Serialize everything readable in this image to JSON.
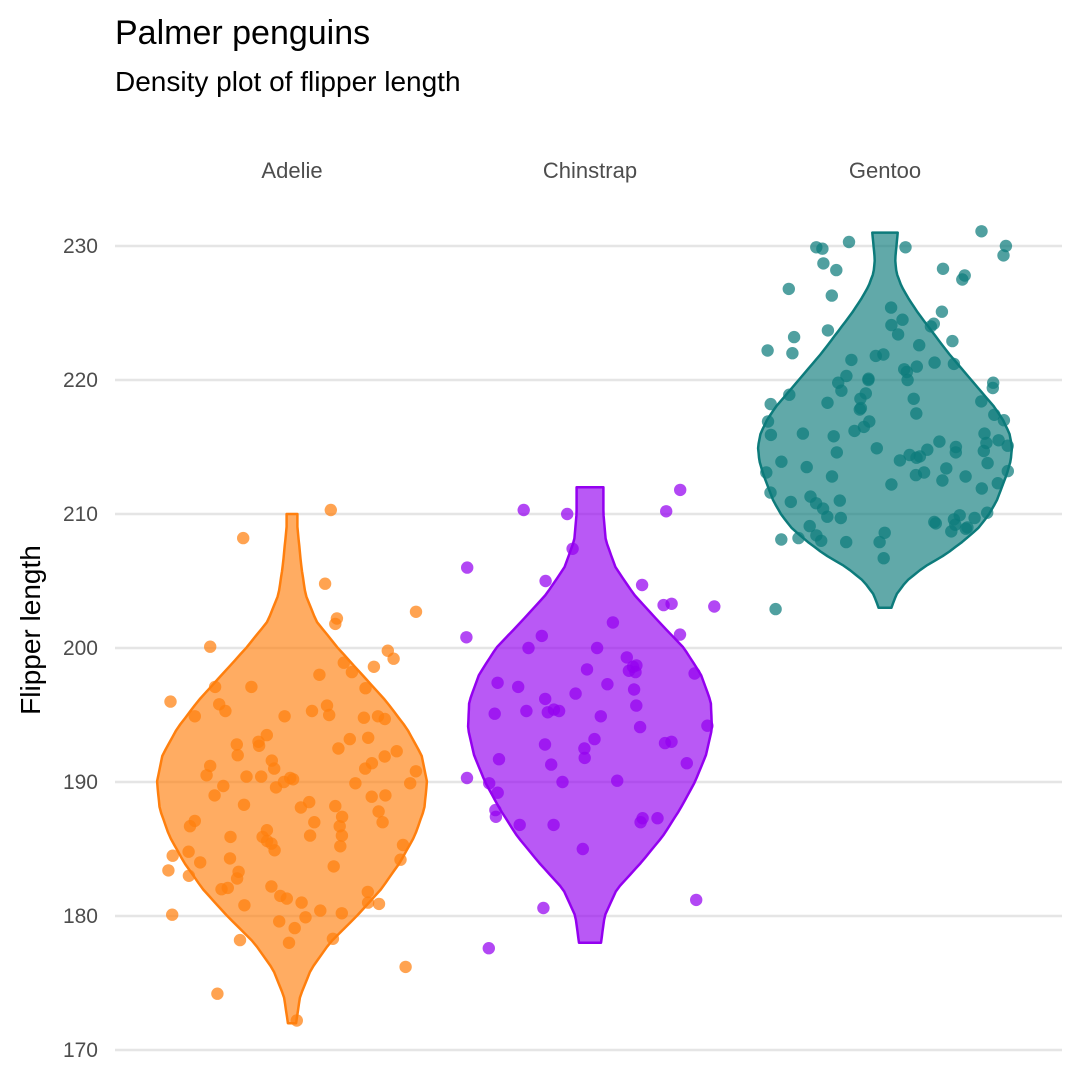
{
  "title": "Palmer penguins",
  "subtitle": "Density plot of flipper length",
  "chart_data": {
    "type": "violin",
    "title": "Palmer penguins",
    "subtitle": "Density plot of flipper length",
    "xlabel": "",
    "ylabel": "Flipper length",
    "ylim": [
      170,
      231
    ],
    "yticks": [
      170,
      180,
      190,
      200,
      210,
      220,
      230
    ],
    "grid": "horizontal major",
    "legend": "none",
    "categories": [
      "Adelie",
      "Chinstrap",
      "Gentoo"
    ],
    "series": [
      {
        "category": "Adelie",
        "color": "#ff7f0e",
        "range": [
          172,
          210
        ],
        "density_profile": [
          [
            172,
            0.03
          ],
          [
            174,
            0.06
          ],
          [
            176,
            0.14
          ],
          [
            178,
            0.28
          ],
          [
            180,
            0.48
          ],
          [
            182,
            0.66
          ],
          [
            184,
            0.8
          ],
          [
            186,
            0.91
          ],
          [
            188,
            0.98
          ],
          [
            190,
            1.0
          ],
          [
            192,
            0.96
          ],
          [
            194,
            0.85
          ],
          [
            196,
            0.7
          ],
          [
            198,
            0.52
          ],
          [
            200,
            0.34
          ],
          [
            202,
            0.18
          ],
          [
            204,
            0.1
          ],
          [
            206,
            0.07
          ],
          [
            208,
            0.05
          ],
          [
            209,
            0.04
          ],
          [
            210,
            0.04
          ]
        ],
        "values": [
          210.3,
          208.2,
          204.8,
          202.7,
          202.2,
          201.8,
          200.1,
          199.8,
          198.9,
          198.6,
          198.2,
          197.1,
          197.0,
          197.1,
          195.3,
          195.3,
          195.8,
          194.8,
          194.7,
          194.9,
          194.9,
          194.9,
          193.2,
          193.0,
          192.8,
          192.7,
          192.3,
          191.9,
          191.6,
          191.0,
          191.4,
          191.2,
          190.5,
          190.4,
          190.4,
          190.2,
          189.9,
          190.0,
          189.9,
          189.7,
          189.6,
          189.0,
          188.9,
          188.3,
          188.1,
          187.8,
          187.4,
          187.1,
          187.0,
          186.7,
          186.7,
          186.4,
          186.0,
          185.9,
          185.9,
          185.6,
          185.4,
          185.3,
          184.9,
          184.5,
          184.3,
          184.0,
          183.7,
          183.4,
          183.3,
          182.8,
          182.2,
          182.0,
          181.8,
          181.3,
          181.0,
          180.9,
          180.4,
          180.2,
          180.1,
          179.9,
          179.6,
          179.1,
          178.3,
          178.2,
          178.0,
          176.2,
          174.2,
          172.2,
          199.2,
          198.0,
          196.0,
          195.7,
          195.0,
          193.5,
          193.3,
          192.5,
          192.0,
          191.0,
          190.8,
          190.3,
          189.0,
          188.5,
          188.2,
          187.0,
          186.0,
          185.2,
          184.8,
          184.2,
          183.0,
          182.1,
          181.5,
          181.0,
          180.8
        ],
        "n_points": 109
      },
      {
        "category": "Chinstrap",
        "color": "#9400f0",
        "range": [
          178,
          212
        ],
        "density_profile": [
          [
            178,
            0.09
          ],
          [
            180,
            0.12
          ],
          [
            182,
            0.22
          ],
          [
            184,
            0.42
          ],
          [
            186,
            0.6
          ],
          [
            188,
            0.74
          ],
          [
            190,
            0.86
          ],
          [
            192,
            0.95
          ],
          [
            194,
            1.0
          ],
          [
            196,
            0.99
          ],
          [
            198,
            0.91
          ],
          [
            200,
            0.77
          ],
          [
            202,
            0.56
          ],
          [
            204,
            0.36
          ],
          [
            206,
            0.21
          ],
          [
            208,
            0.13
          ],
          [
            210,
            0.11
          ],
          [
            212,
            0.11
          ]
        ],
        "values": [
          211.8,
          210.3,
          210.2,
          210.0,
          207.4,
          206.0,
          205.0,
          204.7,
          203.3,
          203.2,
          203.1,
          201.9,
          201.0,
          200.9,
          200.8,
          200.0,
          200.0,
          199.3,
          198.7,
          198.6,
          198.4,
          198.3,
          198.1,
          198.2,
          197.4,
          197.3,
          197.1,
          196.9,
          196.6,
          196.2,
          195.7,
          195.4,
          195.3,
          195.3,
          195.2,
          195.1,
          194.9,
          194.2,
          194.1,
          193.2,
          193.0,
          192.9,
          192.8,
          192.5,
          191.8,
          191.7,
          191.4,
          191.3,
          190.3,
          190.1,
          190.0,
          189.9,
          189.2,
          187.9,
          187.4,
          187.3,
          187.3,
          187.0,
          186.8,
          186.8,
          185.0,
          181.2,
          180.6,
          177.6
        ],
        "n_points": 64
      },
      {
        "category": "Gentoo",
        "color": "#0d7b7b",
        "range": [
          203,
          231
        ],
        "density_profile": [
          [
            203,
            0.05
          ],
          [
            204,
            0.09
          ],
          [
            205,
            0.17
          ],
          [
            206,
            0.3
          ],
          [
            207,
            0.48
          ],
          [
            208,
            0.62
          ],
          [
            209,
            0.74
          ],
          [
            210,
            0.82
          ],
          [
            211,
            0.88
          ],
          [
            212,
            0.92
          ],
          [
            213,
            0.96
          ],
          [
            214,
            0.99
          ],
          [
            215,
            1.0
          ],
          [
            216,
            0.98
          ],
          [
            217,
            0.93
          ],
          [
            218,
            0.86
          ],
          [
            219,
            0.77
          ],
          [
            220,
            0.68
          ],
          [
            221,
            0.59
          ],
          [
            222,
            0.5
          ],
          [
            223,
            0.42
          ],
          [
            224,
            0.34
          ],
          [
            225,
            0.26
          ],
          [
            226,
            0.19
          ],
          [
            227,
            0.13
          ],
          [
            228,
            0.09
          ],
          [
            229,
            0.08
          ],
          [
            230,
            0.09
          ],
          [
            231,
            0.1
          ]
        ],
        "values": [
          231.1,
          230.3,
          230.0,
          229.9,
          229.8,
          229.9,
          229.3,
          228.7,
          228.3,
          228.2,
          227.8,
          226.3,
          225.4,
          225.1,
          224.1,
          224.2,
          224.0,
          223.7,
          223.2,
          222.9,
          222.2,
          222.0,
          221.9,
          221.8,
          221.5,
          221.3,
          221.0,
          220.8,
          220.3,
          220.1,
          220.0,
          220.0,
          219.8,
          219.8,
          219.4,
          218.6,
          218.6,
          218.4,
          218.3,
          218.2,
          217.9,
          217.8,
          217.4,
          217.0,
          216.9,
          216.5,
          216.2,
          216.0,
          216.0,
          215.8,
          215.5,
          215.4,
          215.1,
          215.0,
          214.9,
          214.8,
          214.7,
          214.6,
          214.6,
          214.4,
          214.2,
          214.0,
          213.9,
          213.8,
          213.4,
          213.1,
          213.1,
          212.8,
          212.8,
          212.5,
          212.3,
          212.2,
          211.9,
          211.3,
          210.9,
          210.8,
          210.1,
          209.9,
          209.8,
          209.7,
          209.7,
          209.6,
          209.4,
          209.3,
          209.1,
          209.0,
          208.9,
          208.7,
          208.4,
          208.2,
          208.1,
          208.0,
          207.9,
          207.9,
          206.7,
          202.9,
          219.2,
          217.5,
          215.3,
          213.5,
          211.6,
          210.4,
          209.2,
          208.6,
          222.6,
          224.5,
          226.8,
          227.5,
          216.9,
          214.3,
          212.9,
          211.0,
          218.9,
          220.6,
          223.4,
          221.2,
          219.0,
          215.9,
          213.2
        ],
        "n_points": 119
      }
    ]
  }
}
